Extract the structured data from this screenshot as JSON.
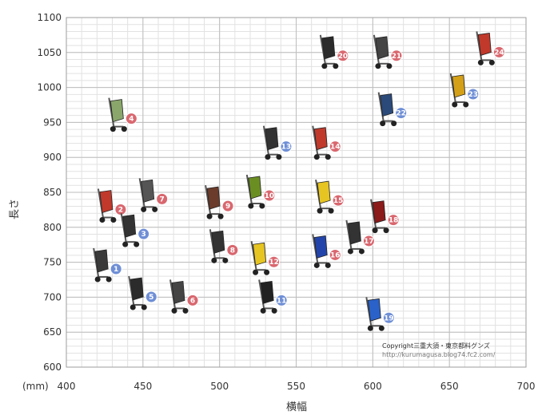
{
  "chart_data": {
    "type": "scatter",
    "title": "",
    "xlabel": "横幅",
    "ylabel": "長さ",
    "xunit_label": "(mm)",
    "xlim": [
      400,
      700
    ],
    "ylim": [
      600,
      1100
    ],
    "xticks": [
      400,
      450,
      500,
      550,
      600,
      650,
      700
    ],
    "yticks": [
      600,
      650,
      700,
      750,
      800,
      850,
      900,
      950,
      1000,
      1050,
      1100
    ],
    "minor_x_step": 10,
    "minor_y_step": 10,
    "grid": true,
    "legend": "none",
    "colors": {
      "badge_red": "#d9676f",
      "badge_blue": "#6f8fd6",
      "grid_major": "#bdbdbd",
      "grid_minor": "#e2e2e2"
    },
    "points": [
      {
        "label": "1",
        "x": 422,
        "y": 745,
        "stroller_color": "#3a3a3a",
        "badge": "blue"
      },
      {
        "label": "2",
        "x": 425,
        "y": 830,
        "stroller_color": "#c0392b",
        "badge": "red"
      },
      {
        "label": "3",
        "x": 440,
        "y": 795,
        "stroller_color": "#333333",
        "badge": "blue"
      },
      {
        "label": "4",
        "x": 432,
        "y": 960,
        "stroller_color": "#8aa66b",
        "badge": "red"
      },
      {
        "label": "5",
        "x": 445,
        "y": 705,
        "stroller_color": "#2b2b2b",
        "badge": "blue"
      },
      {
        "label": "6",
        "x": 472,
        "y": 700,
        "stroller_color": "#444444",
        "badge": "red"
      },
      {
        "label": "7",
        "x": 452,
        "y": 845,
        "stroller_color": "#555555",
        "badge": "red"
      },
      {
        "label": "8",
        "x": 498,
        "y": 772,
        "stroller_color": "#333333",
        "badge": "red"
      },
      {
        "label": "9",
        "x": 495,
        "y": 835,
        "stroller_color": "#6b3b2b",
        "badge": "red"
      },
      {
        "label": "10",
        "x": 522,
        "y": 850,
        "stroller_color": "#6b8e23",
        "badge": "red"
      },
      {
        "label": "11",
        "x": 530,
        "y": 700,
        "stroller_color": "#222222",
        "badge": "blue"
      },
      {
        "label": "12",
        "x": 525,
        "y": 755,
        "stroller_color": "#e6c422",
        "badge": "red"
      },
      {
        "label": "13",
        "x": 533,
        "y": 920,
        "stroller_color": "#333333",
        "badge": "blue"
      },
      {
        "label": "14",
        "x": 565,
        "y": 920,
        "stroller_color": "#c0392b",
        "badge": "red"
      },
      {
        "label": "15",
        "x": 567,
        "y": 843,
        "stroller_color": "#e6c422",
        "badge": "red"
      },
      {
        "label": "16",
        "x": 565,
        "y": 765,
        "stroller_color": "#2244aa",
        "badge": "red"
      },
      {
        "label": "17",
        "x": 587,
        "y": 785,
        "stroller_color": "#333333",
        "badge": "red"
      },
      {
        "label": "18",
        "x": 603,
        "y": 815,
        "stroller_color": "#8b1a1a",
        "badge": "red"
      },
      {
        "label": "19",
        "x": 600,
        "y": 675,
        "stroller_color": "#2a62c9",
        "badge": "blue"
      },
      {
        "label": "20",
        "x": 570,
        "y": 1050,
        "stroller_color": "#2b2b2b",
        "badge": "red"
      },
      {
        "label": "21",
        "x": 605,
        "y": 1050,
        "stroller_color": "#444444",
        "badge": "red"
      },
      {
        "label": "22",
        "x": 608,
        "y": 968,
        "stroller_color": "#2b4a7a",
        "badge": "blue"
      },
      {
        "label": "23",
        "x": 655,
        "y": 995,
        "stroller_color": "#d4a017",
        "badge": "blue"
      },
      {
        "label": "24",
        "x": 672,
        "y": 1055,
        "stroller_color": "#c0392b",
        "badge": "red"
      }
    ]
  },
  "watermark": {
    "line1": "Copyright三重大須・東京都料グンズ",
    "line2": "http://kurumagusa.blog74.fc2.com/"
  }
}
